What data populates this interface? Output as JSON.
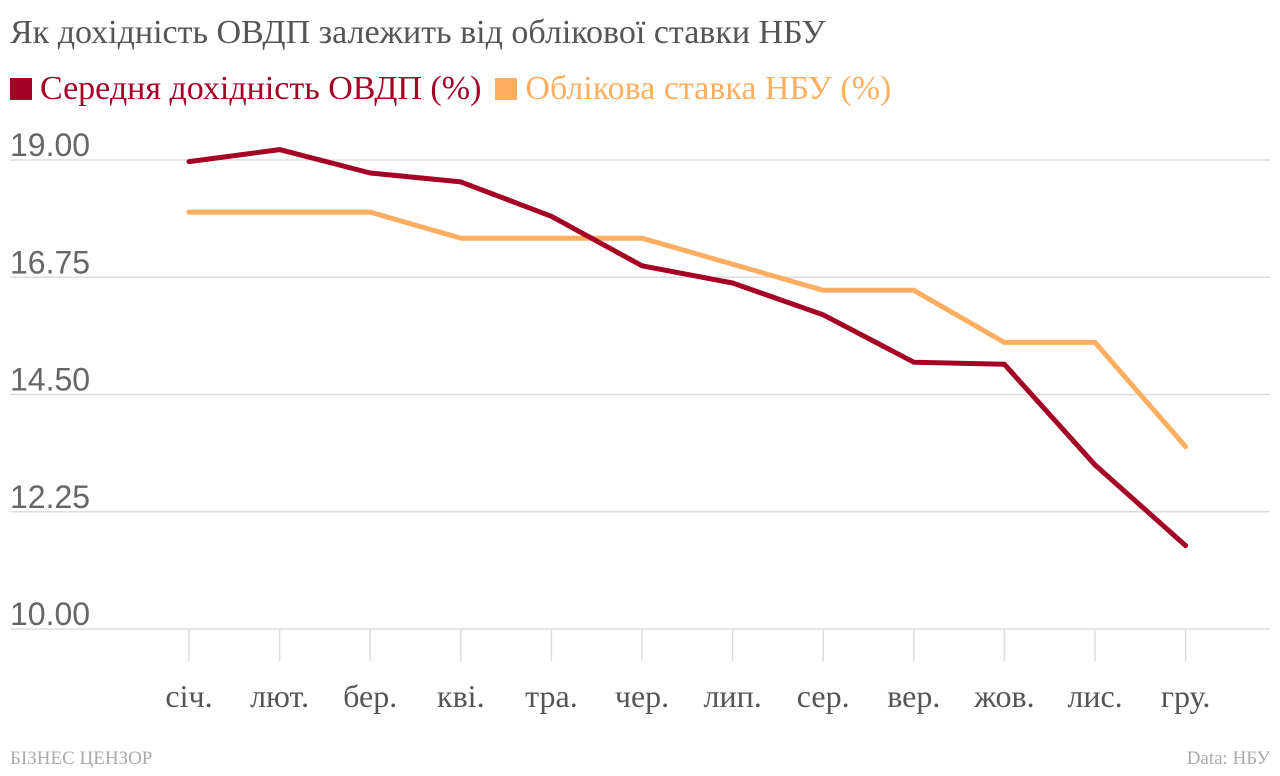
{
  "chart_data": {
    "type": "line",
    "title": "Як дохідність ОВДП залежить від облікової ставки НБУ",
    "categories": [
      "січ.",
      "лют.",
      "бер.",
      "кві.",
      "тра.",
      "чер.",
      "лип.",
      "сер.",
      "вер.",
      "жов.",
      "лис.",
      "гру."
    ],
    "series": [
      {
        "name": "Середня дохідність ОВДП (%)",
        "color": "#a50026",
        "values": [
          18.97,
          19.2,
          18.75,
          18.58,
          17.92,
          16.97,
          16.64,
          16.03,
          15.12,
          15.08,
          13.15,
          11.6
        ]
      },
      {
        "name": "Облікова ставка НБУ (%)",
        "color": "#fdae61",
        "values": [
          18.0,
          18.0,
          18.0,
          17.5,
          17.5,
          17.5,
          17.0,
          16.5,
          16.5,
          15.5,
          15.5,
          13.5
        ]
      }
    ],
    "y_ticks": [
      "19.00",
      "16.75",
      "14.50",
      "12.25",
      "10.00"
    ],
    "ylim": [
      10.0,
      19.0
    ],
    "grid": true,
    "legend_position": "top-left"
  },
  "footer": {
    "source_brand": "БІЗНЕС ЦЕНЗОР",
    "data_credit": "Data: НБУ"
  }
}
